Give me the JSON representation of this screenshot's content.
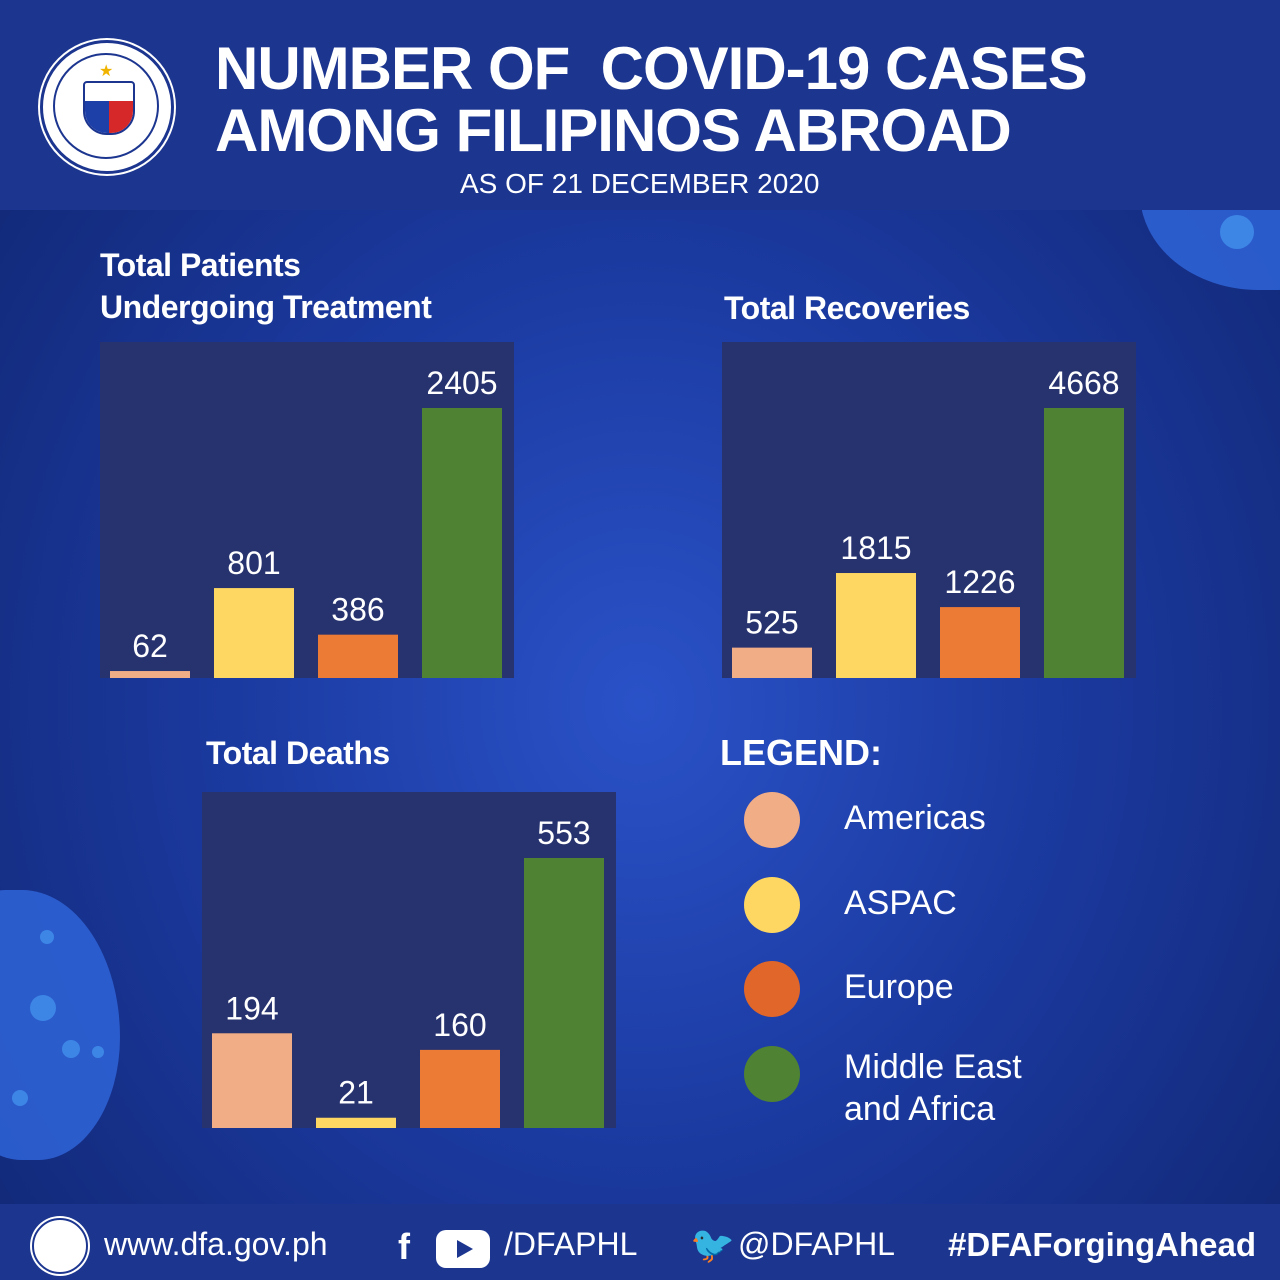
{
  "header": {
    "title_line1": "NUMBER OF  COVID-19 CASES",
    "title_line2": "AMONG FILIPINOS ABROAD",
    "subtitle": "AS OF 21 DECEMBER 2020"
  },
  "colors": {
    "Americas": "#f1ad85",
    "ASPAC": "#fdd762",
    "Europe": "#ec7b35",
    "Middle East and Africa": "#4f8232"
  },
  "chart_data": [
    {
      "type": "bar",
      "title": "Total Patients Undergoing Treatment",
      "title_lines": [
        "Total Patients",
        "Undergoing Treatment"
      ],
      "categories": [
        "Americas",
        "ASPAC",
        "Europe",
        "Middle East and Africa"
      ],
      "values": [
        62,
        801,
        386,
        2405
      ],
      "labels": [
        "62",
        "801",
        "386",
        "2405"
      ]
    },
    {
      "type": "bar",
      "title": "Total Recoveries",
      "title_lines": [
        "Total Recoveries"
      ],
      "categories": [
        "Americas",
        "ASPAC",
        "Europe",
        "Middle East and Africa"
      ],
      "values": [
        525,
        1815,
        1226,
        4668
      ],
      "labels": [
        "525",
        "1815",
        "1226",
        "4668"
      ]
    },
    {
      "type": "bar",
      "title": "Total Deaths",
      "title_lines": [
        "Total Deaths"
      ],
      "categories": [
        "Americas",
        "ASPAC",
        "Europe",
        "Middle East and Africa"
      ],
      "values": [
        194,
        21,
        160,
        553
      ],
      "labels": [
        "194",
        "21",
        "160",
        "553"
      ]
    }
  ],
  "legend": {
    "title": "LEGEND:",
    "items": [
      {
        "label": "Americas",
        "color": "#f1ad85"
      },
      {
        "label": "ASPAC",
        "color": "#fdd762"
      },
      {
        "label": "Europe",
        "color": "#e0662a"
      },
      {
        "label": "Middle East and Africa",
        "line1": "Middle East",
        "line2": "and Africa",
        "color": "#4f8232"
      }
    ]
  },
  "footer": {
    "website": "www.dfa.gov.ph",
    "social": "/DFAPHL",
    "twitter": "@DFAPHL",
    "hashtag": "#DFAForgingAhead",
    "icons": [
      "facebook-icon",
      "youtube-icon",
      "twitter-icon"
    ]
  }
}
